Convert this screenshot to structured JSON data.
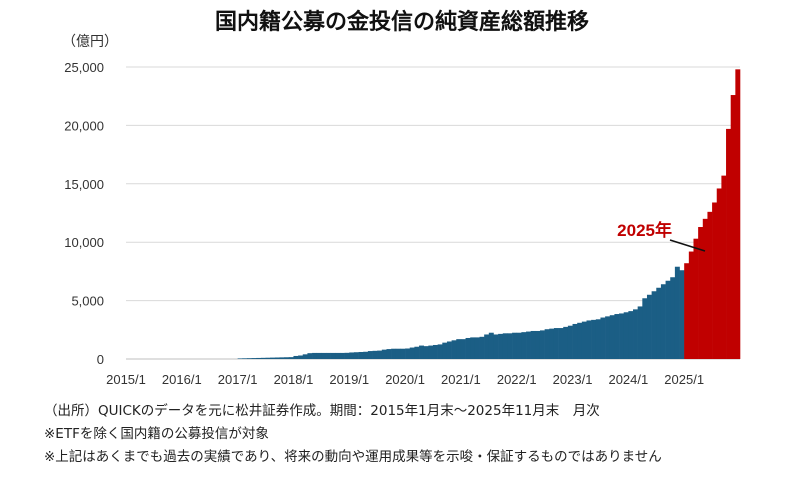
{
  "chart_data": {
    "type": "bar",
    "title": "国内籍公募の金投信の純資産総額推移",
    "unit_label": "（億円）",
    "ylim": [
      0,
      25000
    ],
    "y_ticks": [
      "25,000",
      "20,000",
      "15,000",
      "10,000",
      "5,000",
      "0"
    ],
    "y_tick_values": [
      25000,
      20000,
      15000,
      10000,
      5000,
      0
    ],
    "x_tick_labels": [
      "2015/1",
      "2016/1",
      "2017/1",
      "2018/1",
      "2019/1",
      "2020/1",
      "2021/1",
      "2022/1",
      "2023/1",
      "2024/1",
      "2025/1"
    ],
    "grid": true,
    "colors": {
      "before_2025": "#1b5e85",
      "year_2025": "#c00000",
      "grid": "#d9d9d9",
      "annotation": "#c00000"
    },
    "annotation": "2025年",
    "start_month": "2015/1",
    "end_month": "2025/11",
    "highlight_from": "2025/1",
    "series": [
      {
        "values": [
          0,
          0,
          0,
          0,
          0,
          0,
          0,
          0,
          0,
          0,
          0,
          0,
          0,
          0,
          0,
          0,
          0,
          0,
          0,
          0,
          0,
          0,
          0,
          0,
          50,
          60,
          70,
          80,
          90,
          100,
          110,
          120,
          130,
          140,
          150,
          160,
          260,
          300,
          400,
          500,
          520,
          520,
          520,
          520,
          520,
          520,
          520,
          530,
          560,
          580,
          600,
          620,
          680,
          700,
          720,
          800,
          850,
          880,
          880,
          880,
          900,
          980,
          1050,
          1150,
          1100,
          1150,
          1200,
          1250,
          1400,
          1500,
          1600,
          1700,
          1700,
          1800,
          1850,
          1850,
          1900,
          2100,
          2250,
          2100,
          2150,
          2200,
          2200,
          2250,
          2250,
          2300,
          2350,
          2400,
          2400,
          2450,
          2550,
          2600,
          2650,
          2650,
          2750,
          2850,
          3000,
          3100,
          3200,
          3300,
          3350,
          3400,
          3550,
          3650,
          3750,
          3850,
          3900,
          4000,
          4100,
          4250,
          4500,
          5200,
          5500,
          5800,
          6100,
          6400,
          6700,
          7000,
          7900,
          7600,
          8200,
          9200,
          10300,
          11300,
          12000,
          12600,
          13400,
          14600,
          15700,
          19700,
          22600,
          24800
        ]
      }
    ]
  },
  "notes": [
    "（出所）QUICKのデータを元に松井証券作成。期間：2015年1月末～2025年11月末　月次",
    "※ETFを除く国内籍の公募投信が対象",
    "※上記はあくまでも過去の実績であり、将来の動向や運用成果等を示唆・保証するものではありません"
  ]
}
